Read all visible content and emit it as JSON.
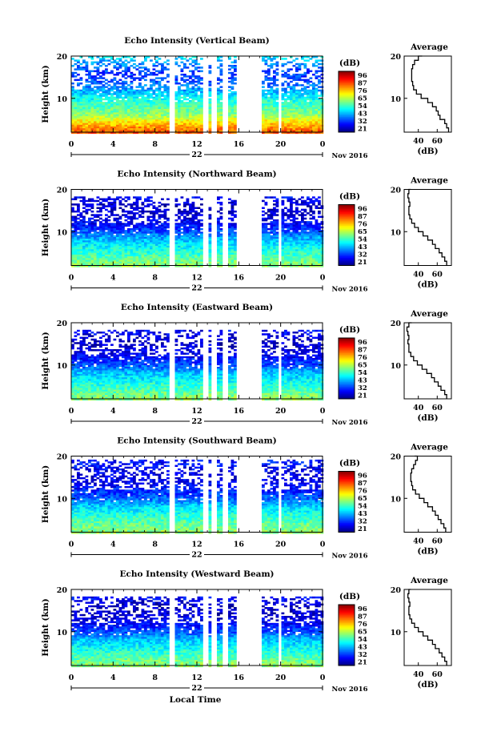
{
  "chart_data": [
    {
      "type": "heatmap",
      "title": "Echo Intensity (Vertical Beam)",
      "ylabel": "Height (km)",
      "ylim": [
        2,
        20
      ],
      "yticks": [
        "10",
        "20"
      ],
      "xlim": [
        0,
        24
      ],
      "xticks": [
        "0",
        "4",
        "8",
        "12",
        "16",
        "20",
        "0"
      ],
      "date_label": "22",
      "month_label": "Nov 2016",
      "colorbar_unit": "(dB)",
      "colorbar_ticks": [
        "96",
        "87",
        "76",
        "65",
        "54",
        "43",
        "32",
        "21"
      ],
      "data_gaps_hours": [
        [
          9.4,
          9.8
        ],
        [
          12.6,
          13.2
        ],
        [
          13.5,
          13.9
        ],
        [
          14.5,
          14.9
        ],
        [
          15.7,
          18.3
        ],
        [
          19.7,
          20.1
        ]
      ],
      "top_height_km": 20,
      "level_by_height": [
        [
          2,
          80
        ],
        [
          4,
          72
        ],
        [
          6,
          60
        ],
        [
          8,
          55
        ],
        [
          10,
          50
        ],
        [
          12,
          42
        ],
        [
          14,
          36
        ],
        [
          16,
          34
        ],
        [
          18,
          40
        ],
        [
          20,
          48
        ]
      ],
      "average": {
        "title": "Average",
        "xlabel": "(dB)",
        "xticks": [
          "40",
          "60"
        ],
        "xlim": [
          25,
          75
        ],
        "yticks": [
          "10",
          "20"
        ],
        "ylim": [
          2,
          20
        ],
        "profile": [
          [
            2,
            72
          ],
          [
            3,
            70
          ],
          [
            4,
            68
          ],
          [
            5,
            63
          ],
          [
            6,
            61
          ],
          [
            7,
            59
          ],
          [
            8,
            55
          ],
          [
            9,
            50
          ],
          [
            10,
            43
          ],
          [
            11,
            38
          ],
          [
            12,
            35
          ],
          [
            13,
            34
          ],
          [
            14,
            33
          ],
          [
            15,
            33
          ],
          [
            16,
            33
          ],
          [
            17,
            34
          ],
          [
            18,
            36
          ],
          [
            19,
            40
          ],
          [
            20,
            44
          ]
        ]
      }
    },
    {
      "type": "heatmap",
      "title": "Echo Intensity (Northward Beam)",
      "ylabel": "Height (km)",
      "ylim": [
        2,
        20
      ],
      "yticks": [
        "10",
        "20"
      ],
      "xlim": [
        0,
        24
      ],
      "xticks": [
        "0",
        "4",
        "8",
        "12",
        "16",
        "20",
        "0"
      ],
      "date_label": "22",
      "month_label": "Nov 2016",
      "colorbar_unit": "(dB)",
      "colorbar_ticks": [
        "96",
        "87",
        "76",
        "65",
        "54",
        "43",
        "32",
        "21"
      ],
      "data_gaps_hours": [
        [
          9.4,
          9.8
        ],
        [
          12.6,
          13.2
        ],
        [
          13.5,
          13.9
        ],
        [
          14.5,
          14.9
        ],
        [
          15.7,
          18.3
        ],
        [
          19.7,
          20.1
        ]
      ],
      "top_height_km": 18.5,
      "level_by_height": [
        [
          2,
          60
        ],
        [
          4,
          55
        ],
        [
          6,
          50
        ],
        [
          8,
          45
        ],
        [
          10,
          36
        ],
        [
          12,
          30
        ],
        [
          14,
          27
        ],
        [
          16,
          26
        ],
        [
          18,
          30
        ]
      ],
      "average": {
        "title": "Average",
        "xlabel": "(dB)",
        "xticks": [
          "40",
          "60"
        ],
        "xlim": [
          25,
          75
        ],
        "yticks": [
          "10",
          "20"
        ],
        "ylim": [
          2,
          20
        ],
        "profile": [
          [
            2,
            70
          ],
          [
            3,
            68
          ],
          [
            4,
            65
          ],
          [
            5,
            62
          ],
          [
            6,
            58
          ],
          [
            7,
            55
          ],
          [
            8,
            50
          ],
          [
            9,
            45
          ],
          [
            10,
            40
          ],
          [
            11,
            36
          ],
          [
            12,
            33
          ],
          [
            13,
            31
          ],
          [
            14,
            30
          ],
          [
            15,
            30
          ],
          [
            16,
            31
          ],
          [
            17,
            30
          ],
          [
            18,
            29
          ],
          [
            19,
            30
          ],
          [
            20,
            32
          ]
        ]
      }
    },
    {
      "type": "heatmap",
      "title": "Echo Intensity (Eastward Beam)",
      "ylabel": "Height (km)",
      "ylim": [
        2,
        20
      ],
      "yticks": [
        "10",
        "20"
      ],
      "xlim": [
        0,
        24
      ],
      "xticks": [
        "0",
        "4",
        "8",
        "12",
        "16",
        "20",
        "0"
      ],
      "date_label": "22",
      "month_label": "Nov 2016",
      "colorbar_unit": "(dB)",
      "colorbar_ticks": [
        "96",
        "87",
        "76",
        "65",
        "54",
        "43",
        "32",
        "21"
      ],
      "data_gaps_hours": [
        [
          9.4,
          9.8
        ],
        [
          12.6,
          13.2
        ],
        [
          13.5,
          13.9
        ],
        [
          14.5,
          14.9
        ],
        [
          15.7,
          18.3
        ],
        [
          19.7,
          20.1
        ]
      ],
      "top_height_km": 18.5,
      "level_by_height": [
        [
          2,
          60
        ],
        [
          4,
          55
        ],
        [
          6,
          50
        ],
        [
          8,
          45
        ],
        [
          10,
          36
        ],
        [
          12,
          30
        ],
        [
          14,
          27
        ],
        [
          16,
          26
        ],
        [
          18,
          30
        ]
      ],
      "average": {
        "title": "Average",
        "xlabel": "(dB)",
        "xticks": [
          "40",
          "60"
        ],
        "xlim": [
          25,
          75
        ],
        "yticks": [
          "10",
          "20"
        ],
        "ylim": [
          2,
          20
        ],
        "profile": [
          [
            2,
            70
          ],
          [
            3,
            68
          ],
          [
            4,
            64
          ],
          [
            5,
            61
          ],
          [
            6,
            57
          ],
          [
            7,
            54
          ],
          [
            8,
            49
          ],
          [
            9,
            44
          ],
          [
            10,
            39
          ],
          [
            11,
            35
          ],
          [
            12,
            32
          ],
          [
            13,
            30
          ],
          [
            14,
            30
          ],
          [
            15,
            29
          ],
          [
            16,
            30
          ],
          [
            17,
            29
          ],
          [
            18,
            28
          ],
          [
            19,
            30
          ],
          [
            20,
            33
          ]
        ]
      }
    },
    {
      "type": "heatmap",
      "title": "Echo Intensity (Southward Beam)",
      "ylabel": "Height (km)",
      "ylim": [
        2,
        20
      ],
      "yticks": [
        "10",
        "20"
      ],
      "xlim": [
        0,
        24
      ],
      "xticks": [
        "0",
        "4",
        "8",
        "12",
        "16",
        "20",
        "0"
      ],
      "date_label": "22",
      "month_label": "Nov 2016",
      "colorbar_unit": "(dB)",
      "colorbar_ticks": [
        "96",
        "87",
        "76",
        "65",
        "54",
        "43",
        "32",
        "21"
      ],
      "data_gaps_hours": [
        [
          9.4,
          9.8
        ],
        [
          12.6,
          13.2
        ],
        [
          13.5,
          13.9
        ],
        [
          14.5,
          14.9
        ],
        [
          15.7,
          18.3
        ],
        [
          19.7,
          20.1
        ]
      ],
      "top_height_km": 19,
      "level_by_height": [
        [
          2,
          60
        ],
        [
          4,
          56
        ],
        [
          6,
          52
        ],
        [
          8,
          46
        ],
        [
          10,
          38
        ],
        [
          12,
          32
        ],
        [
          14,
          29
        ],
        [
          16,
          28
        ],
        [
          18,
          31
        ]
      ],
      "average": {
        "title": "Average",
        "xlabel": "(dB)",
        "xticks": [
          "40",
          "60"
        ],
        "xlim": [
          25,
          75
        ],
        "yticks": [
          "10",
          "20"
        ],
        "ylim": [
          2,
          20
        ],
        "profile": [
          [
            2,
            69
          ],
          [
            3,
            67
          ],
          [
            4,
            64
          ],
          [
            5,
            61
          ],
          [
            6,
            58
          ],
          [
            7,
            55
          ],
          [
            8,
            50
          ],
          [
            9,
            46
          ],
          [
            10,
            41
          ],
          [
            11,
            37
          ],
          [
            12,
            34
          ],
          [
            13,
            33
          ],
          [
            14,
            32
          ],
          [
            15,
            32
          ],
          [
            16,
            33
          ],
          [
            17,
            35
          ],
          [
            18,
            37
          ],
          [
            19,
            39
          ],
          [
            20,
            36
          ]
        ]
      }
    },
    {
      "type": "heatmap",
      "title": "Echo Intensity (Westward Beam)",
      "ylabel": "Height (km)",
      "ylim": [
        2,
        20
      ],
      "yticks": [
        "10",
        "20"
      ],
      "xlim": [
        0,
        24
      ],
      "xticks": [
        "0",
        "4",
        "8",
        "12",
        "16",
        "20",
        "0"
      ],
      "date_label": "22",
      "month_label": "Nov 2016",
      "xlabel": "Local Time",
      "colorbar_unit": "(dB)",
      "colorbar_ticks": [
        "96",
        "87",
        "76",
        "65",
        "54",
        "43",
        "32",
        "21"
      ],
      "data_gaps_hours": [
        [
          9.4,
          9.8
        ],
        [
          12.6,
          13.2
        ],
        [
          13.5,
          13.9
        ],
        [
          14.5,
          14.9
        ],
        [
          15.7,
          18.3
        ],
        [
          19.7,
          20.1
        ]
      ],
      "top_height_km": 18.5,
      "level_by_height": [
        [
          2,
          60
        ],
        [
          4,
          55
        ],
        [
          6,
          50
        ],
        [
          8,
          45
        ],
        [
          10,
          36
        ],
        [
          12,
          30
        ],
        [
          14,
          27
        ],
        [
          16,
          26
        ],
        [
          18,
          30
        ]
      ],
      "average": {
        "title": "Average",
        "xlabel": "(dB)",
        "xticks": [
          "40",
          "60"
        ],
        "xlim": [
          25,
          75
        ],
        "yticks": [
          "10",
          "20"
        ],
        "ylim": [
          2,
          20
        ],
        "profile": [
          [
            2,
            70
          ],
          [
            3,
            68
          ],
          [
            4,
            65
          ],
          [
            5,
            62
          ],
          [
            6,
            58
          ],
          [
            7,
            55
          ],
          [
            8,
            50
          ],
          [
            9,
            45
          ],
          [
            10,
            40
          ],
          [
            11,
            36
          ],
          [
            12,
            33
          ],
          [
            13,
            31
          ],
          [
            14,
            30
          ],
          [
            15,
            30
          ],
          [
            16,
            31
          ],
          [
            17,
            30
          ],
          [
            18,
            29
          ],
          [
            19,
            30
          ],
          [
            20,
            32
          ]
        ]
      }
    }
  ]
}
